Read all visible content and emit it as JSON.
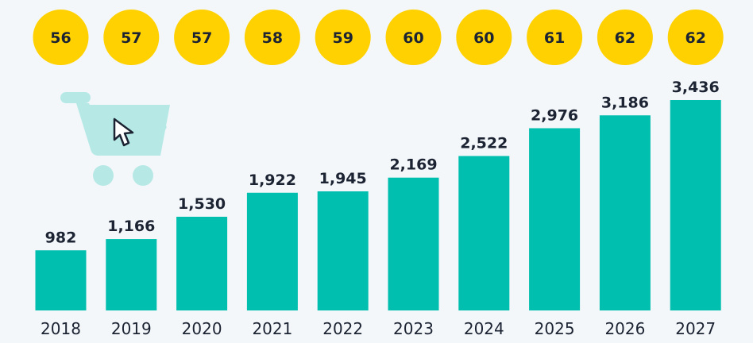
{
  "colors": {
    "background": "#f4f7fa",
    "bar": "#00bfae",
    "badge": "#ffd100",
    "text": "#1c2433",
    "cart": "#b6e9e6"
  },
  "icons": {
    "cart": "shopping-cart-icon",
    "cursor": "mouse-pointer-icon"
  },
  "chart_data": {
    "type": "bar",
    "categories": [
      "2018",
      "2019",
      "2020",
      "2021",
      "2022",
      "2023",
      "2024",
      "2025",
      "2026",
      "2027"
    ],
    "series": [
      {
        "values": [
          982,
          1166,
          1530,
          1922,
          1945,
          2169,
          2522,
          2976,
          3186,
          3436
        ],
        "labels": [
          "982",
          "1,166",
          "1,530",
          "1,922",
          "1,945",
          "2,169",
          "2,522",
          "2,976",
          "3,186",
          "3,436"
        ]
      }
    ],
    "badges": [
      "56",
      "57",
      "57",
      "58",
      "59",
      "60",
      "60",
      "61",
      "62",
      "62"
    ],
    "title": "",
    "xlabel": "",
    "ylabel": "",
    "ylim": [
      0,
      3436
    ],
    "grid": false,
    "legend": "none"
  }
}
